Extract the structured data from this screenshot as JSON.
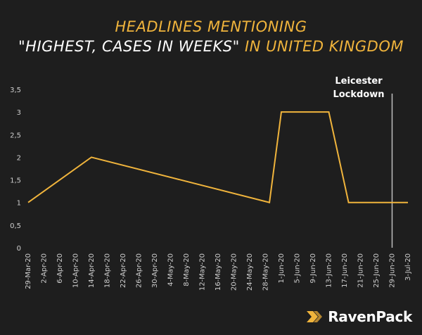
{
  "header": {
    "title_line1": "HEADLINES MENTIONING",
    "title_line2_quote": "\"HIGHEST, CASES IN WEEKS\"",
    "title_line2_rest": " IN UNITED KINGDOM"
  },
  "brand": {
    "name": "RavenPack",
    "icon": "ravenpack-chevron-icon"
  },
  "colors": {
    "background": "#1e1e1e",
    "series": "#f0b43c",
    "axis_text": "#cfcfcf",
    "marker_line": "#bfbfbf",
    "title_white": "#ffffff",
    "title_yellow": "#f0b43c"
  },
  "chart_data": {
    "type": "line",
    "title": "HEADLINES MENTIONING \"HIGHEST, CASES IN WEEKS\" IN UNITED KINGDOM",
    "xlabel": "",
    "ylabel": "",
    "ylim": [
      0,
      3.5
    ],
    "yticks": [
      0,
      0.5,
      1,
      1.5,
      2,
      2.5,
      3,
      3.5
    ],
    "ytick_labels": [
      "0",
      "0,5",
      "1",
      "1,5",
      "2",
      "2,5",
      "3",
      "3,5"
    ],
    "x_start_date": "2020-03-29",
    "x_end_date": "2020-07-03",
    "xtick_labels": [
      "29-Mar-20",
      "2-Apr-20",
      "6-Apr-20",
      "10-Apr-20",
      "14-Apr-20",
      "18-Apr-20",
      "22-Apr-20",
      "26-Apr-20",
      "30-Apr-20",
      "4-May-20",
      "8-May-20",
      "12-May-20",
      "16-May-20",
      "20-May-20",
      "24-May-20",
      "28-May-20",
      "1-Jun-20",
      "5-Jun-20",
      "9-Jun-20",
      "13-Jun-20",
      "17-Jun-20",
      "21-Jun-20",
      "25-Jun-20",
      "29-Jun-20",
      "3-Jul-20"
    ],
    "series": [
      {
        "name": "Headlines",
        "points": [
          {
            "date": "2020-03-29",
            "value": 1
          },
          {
            "date": "2020-04-14",
            "value": 2
          },
          {
            "date": "2020-05-29",
            "value": 1
          },
          {
            "date": "2020-06-01",
            "value": 3
          },
          {
            "date": "2020-06-13",
            "value": 3
          },
          {
            "date": "2020-06-18",
            "value": 1
          },
          {
            "date": "2020-07-03",
            "value": 1
          }
        ]
      }
    ],
    "annotations": [
      {
        "label_line1": "Leicester",
        "label_line2": "Lockdown",
        "date": "2020-06-29"
      }
    ],
    "grid": false,
    "legend": "none"
  }
}
